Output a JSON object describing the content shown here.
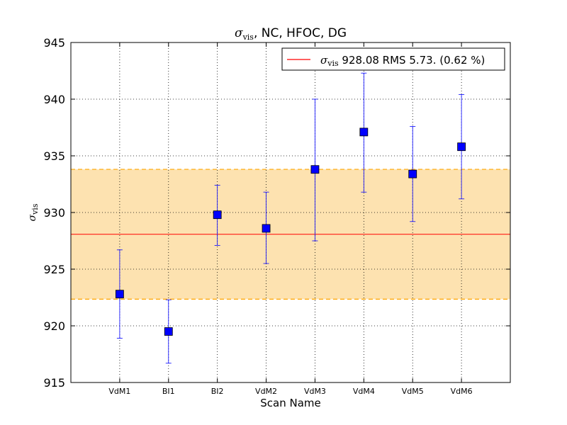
{
  "chart_data": {
    "type": "scatter",
    "title_suffix": ", NC, HFOC, DG",
    "xlabel": "Scan Name",
    "categories": [
      "VdM1",
      "BI1",
      "BI2",
      "VdM2",
      "VdM3",
      "VdM4",
      "VdM5",
      "VdM6"
    ],
    "ylim": [
      915,
      945
    ],
    "yticks": [
      915,
      920,
      925,
      930,
      935,
      940,
      945
    ],
    "grid": true,
    "series": [
      {
        "values": [
          922.8,
          919.5,
          929.8,
          928.6,
          933.8,
          937.1,
          933.4,
          935.8
        ],
        "err_low": [
          918.9,
          916.7,
          927.1,
          925.5,
          927.5,
          931.8,
          929.2,
          931.2
        ],
        "err_high": [
          926.7,
          922.3,
          932.4,
          931.8,
          940.0,
          942.3,
          937.6,
          940.4
        ],
        "color": "#0000ff"
      }
    ],
    "mean": 928.08,
    "band": [
      922.35,
      933.81
    ],
    "mean_color": "#ff0000",
    "band_color": "#fde2b0",
    "band_edge_color": "#ffa500",
    "legend": {
      "placement": "top-right",
      "text_suffix": "928.08 RMS 5.73. (0.62 %)"
    }
  }
}
